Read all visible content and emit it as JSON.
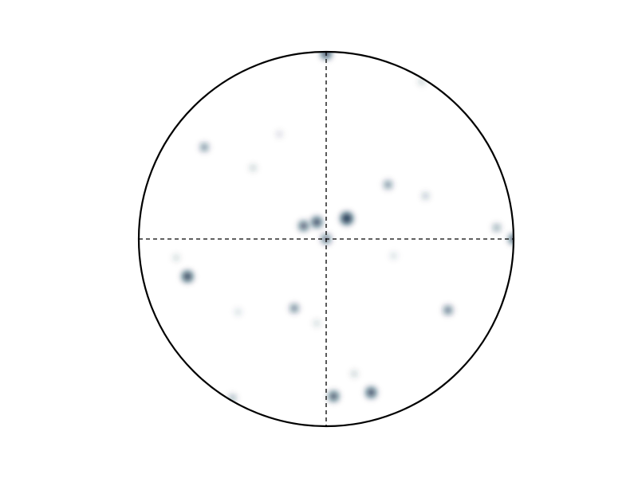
{
  "figure": {
    "type": "stereonet-density",
    "grid": true,
    "colors": {
      "background": "#ffffff",
      "outline": "#000000",
      "crosshair": "#000000",
      "density": "#0d2f4a"
    },
    "projection_range": [
      -1,
      1
    ],
    "points": [
      {
        "x": 0.0,
        "y": 0.99,
        "w": 0.8
      },
      {
        "x": 0.51,
        "y": 0.84,
        "w": 0.15
      },
      {
        "x": -0.65,
        "y": 0.49,
        "w": 0.45
      },
      {
        "x": -0.39,
        "y": 0.38,
        "w": 0.15
      },
      {
        "x": -0.25,
        "y": 0.56,
        "w": 0.08
      },
      {
        "x": 0.33,
        "y": 0.29,
        "w": 0.45
      },
      {
        "x": 0.53,
        "y": 0.23,
        "w": 0.2
      },
      {
        "x": 0.11,
        "y": 0.11,
        "w": 1.0
      },
      {
        "x": -0.05,
        "y": 0.09,
        "w": 0.8
      },
      {
        "x": -0.12,
        "y": 0.07,
        "w": 0.7
      },
      {
        "x": 0.0,
        "y": 0.0,
        "w": 0.6
      },
      {
        "x": 0.91,
        "y": 0.06,
        "w": 0.35
      },
      {
        "x": 1.0,
        "y": 0.0,
        "w": 0.7
      },
      {
        "x": 0.36,
        "y": -0.09,
        "w": 0.1
      },
      {
        "x": -0.74,
        "y": -0.2,
        "w": 0.85
      },
      {
        "x": -0.8,
        "y": -0.1,
        "w": 0.12
      },
      {
        "x": -0.17,
        "y": -0.37,
        "w": 0.5
      },
      {
        "x": -0.47,
        "y": -0.39,
        "w": 0.1
      },
      {
        "x": -0.05,
        "y": -0.45,
        "w": 0.12
      },
      {
        "x": 0.65,
        "y": -0.38,
        "w": 0.55
      },
      {
        "x": 0.04,
        "y": -0.84,
        "w": 0.75
      },
      {
        "x": 0.24,
        "y": -0.82,
        "w": 0.8
      },
      {
        "x": 0.15,
        "y": -0.72,
        "w": 0.15
      },
      {
        "x": -0.5,
        "y": -0.85,
        "w": 0.3
      }
    ]
  }
}
